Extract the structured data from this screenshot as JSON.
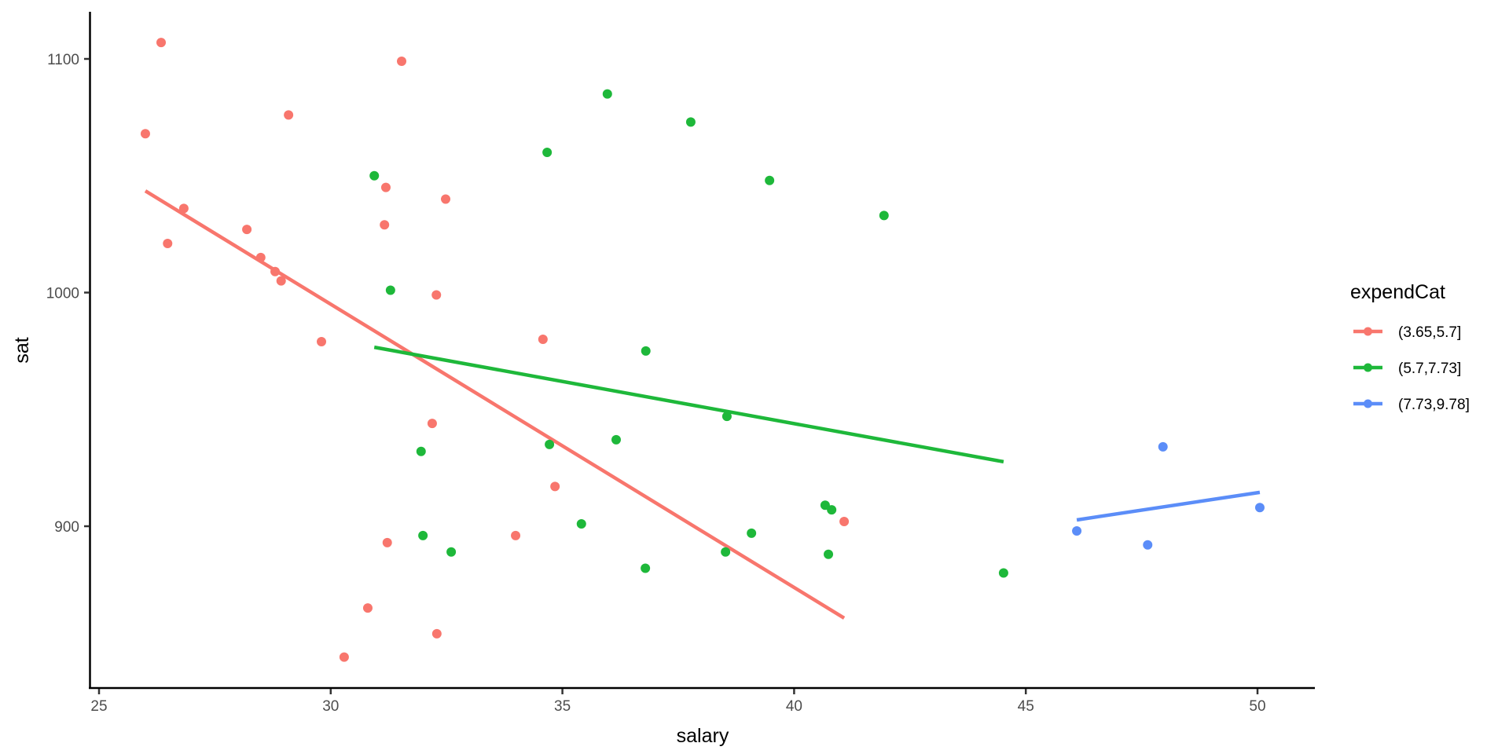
{
  "chart_data": {
    "type": "scatter",
    "title": "",
    "xlabel": "salary",
    "ylabel": "sat",
    "xlim": [
      24.8,
      51.2
    ],
    "ylim": [
      832,
      1119
    ],
    "x_ticks": [
      25,
      30,
      35,
      40,
      45,
      50
    ],
    "x_tick_labels": [
      "25",
      "30",
      "35",
      "40",
      "45",
      "50"
    ],
    "y_ticks": [
      900,
      1000,
      1100
    ],
    "y_tick_labels": [
      "900",
      "1000",
      "1100"
    ],
    "grid": false,
    "legend_position": "right",
    "legend_title": "expendCat",
    "series": [
      {
        "name": "(3.65,5.7]",
        "color": "#F8766D",
        "points": [
          [
            26.34,
            1107
          ],
          [
            31.53,
            1099
          ],
          [
            29.09,
            1076
          ],
          [
            26.0,
            1068
          ],
          [
            31.19,
            1045
          ],
          [
            32.48,
            1040
          ],
          [
            26.83,
            1036
          ],
          [
            31.16,
            1029
          ],
          [
            28.19,
            1027
          ],
          [
            26.48,
            1021
          ],
          [
            28.49,
            1015
          ],
          [
            28.8,
            1009
          ],
          [
            28.93,
            1005
          ],
          [
            32.28,
            999
          ],
          [
            29.8,
            979
          ],
          [
            34.58,
            980
          ],
          [
            32.19,
            944
          ],
          [
            34.84,
            917
          ],
          [
            31.22,
            893
          ],
          [
            33.99,
            896
          ],
          [
            41.08,
            902
          ],
          [
            30.8,
            865
          ],
          [
            32.29,
            854
          ],
          [
            30.29,
            844
          ]
        ],
        "fit_line": [
          [
            26.0,
            1043.5
          ],
          [
            41.08,
            860.7
          ]
        ]
      },
      {
        "name": "(5.7,7.73]",
        "color": "#1EB83A",
        "points": [
          [
            30.94,
            1050
          ],
          [
            31.29,
            1001
          ],
          [
            36.8,
            975
          ],
          [
            35.97,
            1085
          ],
          [
            37.77,
            1073
          ],
          [
            34.67,
            1060
          ],
          [
            39.47,
            1048
          ],
          [
            41.94,
            1033
          ],
          [
            31.95,
            932
          ],
          [
            34.72,
            935
          ],
          [
            36.16,
            937
          ],
          [
            38.55,
            947
          ],
          [
            35.41,
            901
          ],
          [
            31.99,
            896
          ],
          [
            32.6,
            889
          ],
          [
            36.79,
            882
          ],
          [
            38.52,
            889
          ],
          [
            39.08,
            897
          ],
          [
            40.67,
            909
          ],
          [
            40.81,
            907
          ],
          [
            40.74,
            888
          ],
          [
            44.52,
            880
          ]
        ],
        "fit_line": [
          [
            30.94,
            976.6
          ],
          [
            44.52,
            927.6
          ]
        ]
      },
      {
        "name": "(7.73,9.78]",
        "color": "#5B8DF8",
        "points": [
          [
            46.1,
            898
          ],
          [
            47.63,
            892
          ],
          [
            47.96,
            934
          ],
          [
            50.05,
            908
          ]
        ],
        "fit_line": [
          [
            46.1,
            902.7
          ],
          [
            50.05,
            914.5
          ]
        ]
      }
    ]
  }
}
